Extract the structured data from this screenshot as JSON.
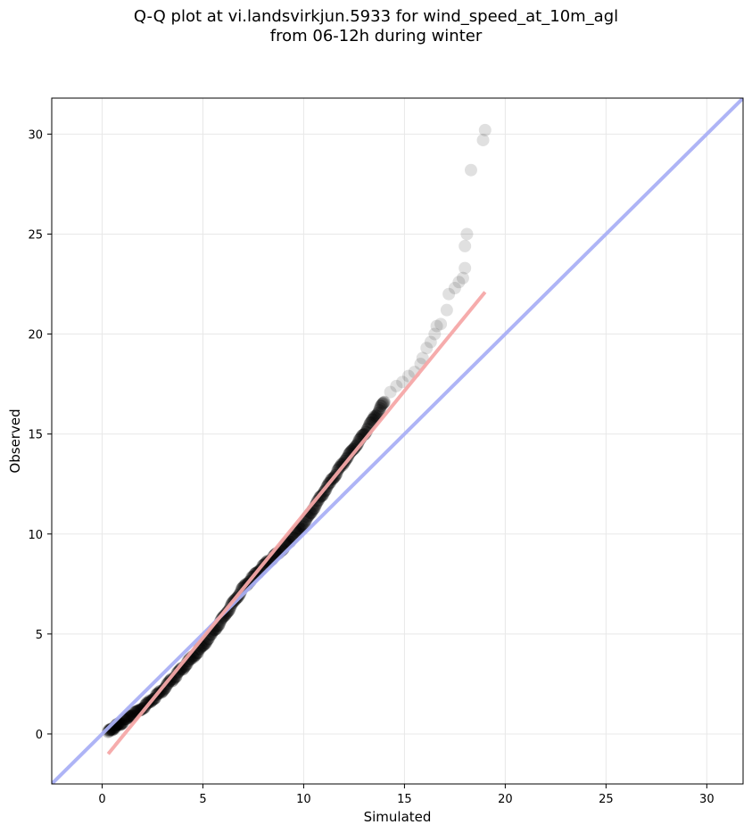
{
  "title": {
    "line1": "Q-Q plot at vi.landsvirkjun.5933 for wind_speed_at_10m_agl",
    "line2": "from 06-12h during winter"
  },
  "colors": {
    "points": "#000000",
    "identity_line": "#aab0f5",
    "fit_line": "#f5a8a8",
    "grid": "#e8e8e8"
  },
  "chart_data": {
    "type": "scatter",
    "xlabel": "Simulated",
    "ylabel": "Observed",
    "xlim": [
      -2.5,
      31.8
    ],
    "ylim": [
      -2.5,
      31.8
    ],
    "xticks": [
      0,
      5,
      10,
      15,
      20,
      25,
      30
    ],
    "yticks": [
      0,
      5,
      10,
      15,
      20,
      25,
      30
    ],
    "grid": true,
    "reference_lines": [
      {
        "kind": "identity",
        "x": [
          -2.5,
          31.8
        ],
        "y": [
          -2.5,
          31.8
        ]
      },
      {
        "kind": "fit",
        "x": [
          0.3,
          19.0
        ],
        "y": [
          -1.0,
          22.1
        ]
      }
    ],
    "points_dense_segments": [
      {
        "x": [
          0.3,
          1.0,
          2.0,
          3.0,
          4.0,
          5.0,
          6.0,
          7.0,
          8.0,
          9.0,
          10.0,
          11.0,
          12.0,
          13.0,
          14.0
        ],
        "y": [
          0.1,
          0.6,
          1.3,
          2.2,
          3.3,
          4.4,
          5.8,
          7.3,
          8.4,
          9.3,
          10.5,
          12.1,
          13.6,
          15.0,
          16.6
        ]
      }
    ],
    "points_tail": [
      {
        "x": 14.3,
        "y": 17.1
      },
      {
        "x": 14.6,
        "y": 17.4
      },
      {
        "x": 14.9,
        "y": 17.6
      },
      {
        "x": 15.2,
        "y": 17.9
      },
      {
        "x": 15.5,
        "y": 18.1
      },
      {
        "x": 15.8,
        "y": 18.5
      },
      {
        "x": 15.9,
        "y": 18.8
      },
      {
        "x": 16.1,
        "y": 19.3
      },
      {
        "x": 16.3,
        "y": 19.6
      },
      {
        "x": 16.5,
        "y": 20.0
      },
      {
        "x": 16.6,
        "y": 20.4
      },
      {
        "x": 16.8,
        "y": 20.5
      },
      {
        "x": 17.1,
        "y": 21.2
      },
      {
        "x": 17.2,
        "y": 22.0
      },
      {
        "x": 17.5,
        "y": 22.3
      },
      {
        "x": 17.7,
        "y": 22.6
      },
      {
        "x": 17.9,
        "y": 22.8
      },
      {
        "x": 18.0,
        "y": 23.3
      },
      {
        "x": 18.0,
        "y": 24.4
      },
      {
        "x": 18.1,
        "y": 25.0
      },
      {
        "x": 18.3,
        "y": 28.2
      },
      {
        "x": 18.9,
        "y": 29.7
      },
      {
        "x": 19.0,
        "y": 30.2
      }
    ]
  }
}
